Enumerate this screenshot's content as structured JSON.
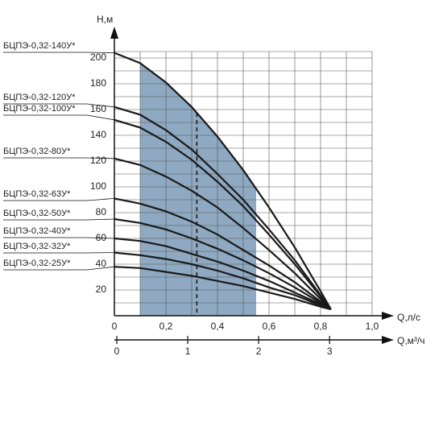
{
  "chart_data": {
    "type": "line",
    "y_label": "H,м",
    "x_label": "Q,л/с",
    "x2_label": "Q,м³/ч",
    "x": [
      0,
      0.1,
      0.2,
      0.3,
      0.4,
      0.5,
      0.6,
      0.7,
      0.8,
      0.84
    ],
    "series": [
      {
        "name": "БЦПЭ-0,32-140У*",
        "color": "#1a1a1a",
        "values": [
          204,
          196,
          181,
          162,
          139,
          113,
          84,
          53,
          19,
          5
        ]
      },
      {
        "name": "БЦПЭ-0,32-120У*",
        "color": "#1a1a1a",
        "values": [
          162,
          156,
          144,
          129,
          110,
          90,
          67,
          43,
          16,
          5
        ]
      },
      {
        "name": "БЦПЭ-0,32-100У*",
        "color": "#1a1a1a",
        "values": [
          152,
          146,
          135,
          121,
          104,
          85,
          63,
          40,
          15,
          5
        ]
      },
      {
        "name": "БЦПЭ-0,32-80У*",
        "color": "#1a1a1a",
        "values": [
          122,
          117,
          108,
          97,
          84,
          68,
          51,
          33,
          13,
          5
        ]
      },
      {
        "name": "БЦПЭ-0,32-63У*",
        "color": "#1a1a1a",
        "values": [
          91,
          87,
          81,
          73,
          63,
          51,
          39,
          26,
          11,
          5
        ]
      },
      {
        "name": "БЦПЭ-0,32-50У*",
        "color": "#1a1a1a",
        "values": [
          75,
          72,
          67,
          60,
          52,
          43,
          33,
          22,
          10,
          5
        ]
      },
      {
        "name": "БЦПЭ-0,32-40У*",
        "color": "#1a1a1a",
        "values": [
          60,
          58,
          54,
          48,
          42,
          35,
          27,
          18,
          9,
          5
        ]
      },
      {
        "name": "БЦПЭ-0,32-32У*",
        "color": "#1a1a1a",
        "values": [
          49,
          47,
          44,
          40,
          35,
          29,
          22,
          16,
          8,
          5
        ]
      },
      {
        "name": "БЦПЭ-0,32-25У*",
        "color": "#1a1a1a",
        "values": [
          38,
          37,
          34,
          31,
          27,
          23,
          18,
          13,
          7,
          5
        ]
      }
    ],
    "xlim": [
      0,
      1.0
    ],
    "ylim": [
      0,
      205
    ],
    "x2lim": [
      0,
      3.6
    ],
    "xticks": [
      0,
      {
        "value": 0.2,
        "label": "0,2"
      },
      {
        "value": 0.4,
        "label": "0,4"
      },
      {
        "value": 0.6,
        "label": "0,6"
      },
      {
        "value": 0.8,
        "label": "0,8"
      },
      {
        "value": 1.0,
        "label": "1,0"
      }
    ],
    "x2ticks": [
      0,
      1,
      2,
      3
    ],
    "yticks": [
      20,
      40,
      60,
      80,
      100,
      120,
      140,
      160,
      180,
      200
    ],
    "x_grid": [
      0,
      0.1,
      0.2,
      0.3,
      0.4,
      0.5,
      0.6,
      0.7,
      0.8,
      0.9,
      1.0
    ],
    "y_grid": [
      10,
      20,
      30,
      40,
      50,
      60,
      70,
      80,
      90,
      100,
      110,
      120,
      130,
      140,
      150,
      160,
      170,
      180,
      190,
      200
    ],
    "working_range": [
      0.1,
      0.55
    ],
    "working_range_color": "#8ea9c1",
    "rated_flow": 0.32
  }
}
